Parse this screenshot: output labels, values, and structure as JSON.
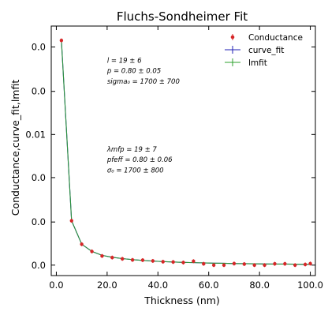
{
  "chart_data": {
    "type": "line",
    "title": "Fluchs-Sondheimer Fit",
    "xlabel": "Thickness (nm)",
    "ylabel": "Conductance,curve_fit,lmfit",
    "xlim": [
      -2,
      102
    ],
    "ylim": [
      -0.0008,
      0.0183
    ],
    "x_ticks": [
      0,
      20,
      40,
      60,
      80,
      100
    ],
    "x_tick_labels": [
      "0.0",
      "20.0",
      "40.0",
      "60.0",
      "80.0",
      "100.0"
    ],
    "y_ticks": [
      0.0,
      0.0033,
      0.0067,
      0.01
    ],
    "y_tick_labels": [
      "0.0",
      "0.0",
      "0.0",
      "0.01"
    ],
    "y_tick_labels_extra": {
      "values": [
        0.0133,
        0.0167
      ],
      "labels": [
        "0.0",
        "0.0"
      ]
    },
    "grid": false,
    "legend_position": "top-right",
    "legend": [
      {
        "label": "Conductance",
        "marker": "dot-errorbar",
        "color": "#d62728"
      },
      {
        "label": "curve_fit",
        "marker": "line-plus",
        "color": "#1f1fb4"
      },
      {
        "label": "lmfit",
        "marker": "line-plus",
        "color": "#2ca02c"
      }
    ],
    "annotations": [
      {
        "text": "l = 19 ± 6",
        "x": 20,
        "y": 0.0155
      },
      {
        "text": "p = 0.80 ± 0.05",
        "x": 20,
        "y": 0.0147
      },
      {
        "text": "sigma₀ = 1700 ± 700",
        "x": 20,
        "y": 0.0139
      },
      {
        "text": "λmfp = 19 ± 7",
        "x": 20,
        "y": 0.0087
      },
      {
        "text": "pfeff = 0.80 ± 0.06",
        "x": 20,
        "y": 0.0079
      },
      {
        "text": "σ₀ = 1700 ± 800",
        "x": 20,
        "y": 0.0071
      }
    ],
    "x": [
      2,
      6,
      10,
      14,
      18,
      22,
      26,
      30,
      34,
      38,
      42,
      46,
      50,
      54,
      58,
      62,
      66,
      70,
      74,
      78,
      82,
      86,
      90,
      94,
      98,
      100
    ],
    "series": [
      {
        "name": "Conductance",
        "color": "#d62728",
        "style": "points",
        "values": [
          0.0172,
          0.0034,
          0.0016,
          0.00105,
          0.0007,
          0.00058,
          0.00048,
          0.0004,
          0.00038,
          0.00032,
          0.00026,
          0.00024,
          0.0002,
          0.0003,
          0.0001,
          0.0,
          0.0,
          0.00012,
          8e-05,
          0.0,
          0.0,
          0.0001,
          0.0001,
          0.0,
          5e-05,
          0.00012
        ]
      },
      {
        "name": "curve_fit",
        "color": "#1f1fb4",
        "style": "line",
        "values": [
          0.0172,
          0.0034,
          0.0016,
          0.00105,
          0.00075,
          0.0006,
          0.0005,
          0.00042,
          0.00036,
          0.00031,
          0.00027,
          0.00024,
          0.00021,
          0.00019,
          0.00017,
          0.00015,
          0.00014,
          0.00012,
          0.00011,
          0.0001,
          9e-05,
          8e-05,
          8e-05,
          7e-05,
          6e-05,
          6e-05
        ]
      },
      {
        "name": "lmfit",
        "color": "#2ca02c",
        "style": "line",
        "values": [
          0.0172,
          0.0034,
          0.0016,
          0.00105,
          0.00075,
          0.0006,
          0.0005,
          0.00042,
          0.00036,
          0.00031,
          0.00027,
          0.00024,
          0.00021,
          0.00019,
          0.00017,
          0.00015,
          0.00014,
          0.00012,
          0.00011,
          0.0001,
          9e-05,
          8e-05,
          8e-05,
          7e-05,
          6e-05,
          6e-05
        ]
      }
    ]
  }
}
